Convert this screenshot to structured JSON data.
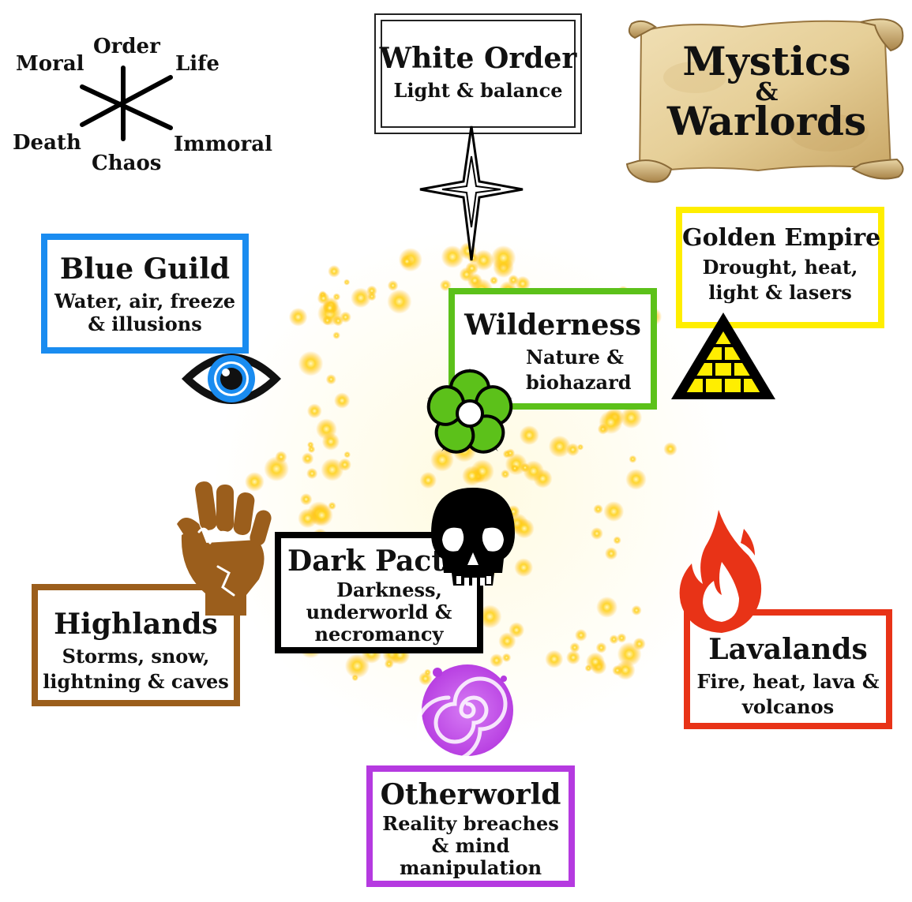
{
  "title": {
    "line1": "Mystics",
    "amp": "&",
    "line2": "Warlords"
  },
  "alignment_compass": {
    "top": "Order",
    "bottom": "Chaos",
    "upper_left": "Moral",
    "upper_right": "Life",
    "lower_left": "Death",
    "lower_right": "Immoral"
  },
  "factions": {
    "white_order": {
      "name": "White Order",
      "lines": [
        "Light & balance"
      ],
      "color": "#222222",
      "icon": "star-icon"
    },
    "blue_guild": {
      "name": "Blue Guild",
      "lines": [
        "Water, air, freeze",
        "& illusions"
      ],
      "color": "#1a8cf0",
      "icon": "eye-icon"
    },
    "wilderness": {
      "name": "Wilderness",
      "lines": [
        "Nature &",
        "biohazard"
      ],
      "color": "#5cc11a",
      "icon": "flower-icon"
    },
    "golden_empire": {
      "name": "Golden Empire",
      "lines": [
        "Drought, heat,",
        "light & lasers"
      ],
      "color": "#ffee00",
      "icon": "pyramid-icon"
    },
    "dark_pact": {
      "name": "Dark Pact",
      "lines": [
        "Darkness,",
        "underworld &",
        "necromancy"
      ],
      "color": "#000000",
      "icon": "skull-icon"
    },
    "highlands": {
      "name": "Highlands",
      "lines": [
        "Storms, snow,",
        "lightning & caves"
      ],
      "color": "#9b5e1c",
      "icon": "fist-icon"
    },
    "lavalands": {
      "name": "Lavalands",
      "lines": [
        "Fire, heat, lava &",
        "volcanos"
      ],
      "color": "#e83317",
      "icon": "flame-icon"
    },
    "otherworld": {
      "name": "Otherworld",
      "lines": [
        "Reality breaches",
        "& mind",
        "manipulation"
      ],
      "color": "#b53ae0",
      "icon": "spiral-icon"
    }
  }
}
